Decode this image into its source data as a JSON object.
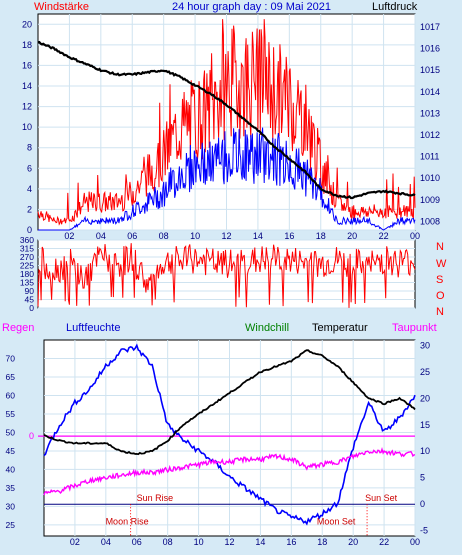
{
  "header": {
    "left_label": "Windstärke",
    "title": "24 hour graph day : 09 Mai 2021",
    "right_label": "Luftdruck"
  },
  "colors": {
    "background": "#d6eaf6",
    "plot_bg": "#ffffff",
    "wind_gust": "#ff0000",
    "wind_avg": "#0000ff",
    "pressure": "#000000",
    "direction": "#ff0000",
    "humidity": "#0000ff",
    "temperature": "#000000",
    "windchill": "#008000",
    "dewpoint": "#ff00ff",
    "rain_marker": "#ff00ff",
    "axis_text": "#000080",
    "title_text": "#0000cc",
    "label_red": "#ff0000"
  },
  "bottom_labels": {
    "regen": "Regen",
    "luftfeuchte": "Luftfeuchte",
    "windchill": "Windchill",
    "temperatur": "Temperatur",
    "taupunkt": "Taupunkt"
  },
  "direction_letters": [
    "N",
    "W",
    "S",
    "O",
    "N"
  ],
  "chart_data": [
    {
      "type": "line",
      "name": "wind-pressure",
      "x_ticks": [
        "02",
        "04",
        "06",
        "08",
        "10",
        "12",
        "14",
        "16",
        "18",
        "20",
        "22",
        "00"
      ],
      "ylim": [
        0,
        21
      ],
      "y_ticks": [
        "0",
        "2",
        "4",
        "6",
        "8",
        "10",
        "12",
        "14",
        "16",
        "18",
        "20"
      ],
      "y2lim": [
        1007.6,
        1017.6
      ],
      "y2_ticks": [
        "1008",
        "1009",
        "1010",
        "1011",
        "1012",
        "1013",
        "1014",
        "1015",
        "1016",
        "1017"
      ],
      "series": [
        {
          "name": "Windstärke",
          "values_desc": "gust",
          "x": [
            0,
            1,
            2,
            3,
            4,
            5,
            6,
            7,
            8,
            9,
            10,
            11,
            12,
            13,
            14,
            15,
            16,
            17,
            18,
            19,
            20,
            21,
            22,
            23,
            24
          ],
          "values": [
            2,
            1,
            1,
            3,
            3,
            3,
            4,
            6,
            8,
            11,
            12,
            13,
            16,
            16,
            16,
            15,
            14,
            12,
            7,
            3,
            2,
            2,
            2,
            2,
            2
          ]
        },
        {
          "name": "Windstärke Mittel",
          "x": [
            0,
            1,
            2,
            3,
            4,
            5,
            6,
            7,
            8,
            9,
            10,
            11,
            12,
            13,
            14,
            15,
            16,
            17,
            18,
            19,
            20,
            21,
            22,
            23,
            24
          ],
          "values": [
            0,
            0,
            0,
            1,
            1,
            1,
            2,
            3,
            4,
            6,
            7,
            7,
            8,
            8,
            8,
            8,
            7,
            6,
            4,
            1,
            1,
            1,
            0,
            1,
            1
          ]
        },
        {
          "name": "Luftdruck",
          "x": [
            0,
            1,
            2,
            3,
            4,
            5,
            6,
            7,
            8,
            9,
            10,
            11,
            12,
            13,
            14,
            15,
            16,
            17,
            18,
            19,
            20,
            21,
            22,
            23,
            24
          ],
          "values": [
            1016.3,
            1016.0,
            1015.6,
            1015.3,
            1015.0,
            1014.8,
            1014.8,
            1014.9,
            1015.0,
            1014.7,
            1014.3,
            1013.9,
            1013.4,
            1012.8,
            1012.2,
            1011.5,
            1010.9,
            1010.3,
            1009.5,
            1009.2,
            1009.1,
            1009.3,
            1009.4,
            1009.3,
            1009.2
          ]
        }
      ]
    },
    {
      "type": "line",
      "name": "wind-direction",
      "ylim": [
        0,
        360
      ],
      "y_ticks": [
        "0",
        "45",
        "90",
        "135",
        "180",
        "225",
        "270",
        "315",
        "360"
      ],
      "series": [
        {
          "name": "Windrichtung",
          "x": [
            0,
            1,
            2,
            3,
            4,
            5,
            6,
            7,
            8,
            9,
            10,
            11,
            12,
            13,
            14,
            15,
            16,
            17,
            18,
            19,
            20,
            21,
            22,
            23,
            24
          ],
          "values": [
            260,
            200,
            240,
            150,
            280,
            230,
            270,
            120,
            240,
            250,
            260,
            240,
            230,
            240,
            250,
            260,
            250,
            240,
            230,
            250,
            240,
            220,
            260,
            240,
            250
          ]
        }
      ]
    },
    {
      "type": "line",
      "name": "humidity-temperature",
      "x_ticks": [
        "02",
        "04",
        "06",
        "08",
        "10",
        "12",
        "14",
        "16",
        "18",
        "20",
        "22",
        "00"
      ],
      "ylim": [
        22,
        75
      ],
      "y_ticks": [
        "25",
        "30",
        "35",
        "40",
        "45",
        "50",
        "55",
        "60",
        "65",
        "70"
      ],
      "y2lim": [
        -6,
        31
      ],
      "y2_ticks": [
        "-5",
        "0",
        "5",
        "10",
        "15",
        "20",
        "25",
        "30"
      ],
      "rain_value": "0",
      "annotations": [
        {
          "text": "Sun Rise",
          "value": 0
        },
        {
          "text": "Sun Set",
          "value": 0
        },
        {
          "text": "Moon Rise",
          "value": -3
        },
        {
          "text": "Moon Set",
          "value": -3
        }
      ],
      "series": [
        {
          "name": "Luftfeuchte",
          "x": [
            0,
            1,
            2,
            3,
            4,
            5,
            6,
            7,
            8,
            9,
            10,
            11,
            12,
            13,
            14,
            15,
            16,
            17,
            18,
            19,
            20,
            21,
            22,
            23,
            24
          ],
          "values": [
            44,
            52,
            58,
            62,
            68,
            72,
            73,
            68,
            52,
            48,
            45,
            42,
            38,
            35,
            32,
            29,
            27,
            26,
            28,
            31,
            46,
            58,
            50,
            54,
            60
          ]
        },
        {
          "name": "Temperatur",
          "x": [
            0,
            1,
            2,
            3,
            4,
            5,
            6,
            7,
            8,
            9,
            10,
            11,
            12,
            13,
            14,
            15,
            16,
            17,
            18,
            19,
            20,
            21,
            22,
            23,
            24
          ],
          "values": [
            13,
            12,
            11.5,
            11.5,
            11.5,
            10,
            9.5,
            10,
            12,
            15,
            17,
            19,
            21,
            23,
            25,
            26,
            27,
            29,
            28,
            26,
            23,
            20,
            19,
            20,
            18
          ]
        },
        {
          "name": "Taupunkt",
          "x": [
            0,
            1,
            2,
            3,
            4,
            5,
            6,
            7,
            8,
            9,
            10,
            11,
            12,
            13,
            14,
            15,
            16,
            17,
            18,
            19,
            20,
            21,
            22,
            23,
            24
          ],
          "values": [
            2,
            2.5,
            3.5,
            4.5,
            5,
            5.5,
            6,
            6,
            6.5,
            7,
            7.5,
            8,
            8,
            8.5,
            8.5,
            9,
            8.5,
            7,
            7.5,
            8,
            9,
            10,
            10,
            9.5,
            9.5
          ]
        }
      ]
    }
  ]
}
